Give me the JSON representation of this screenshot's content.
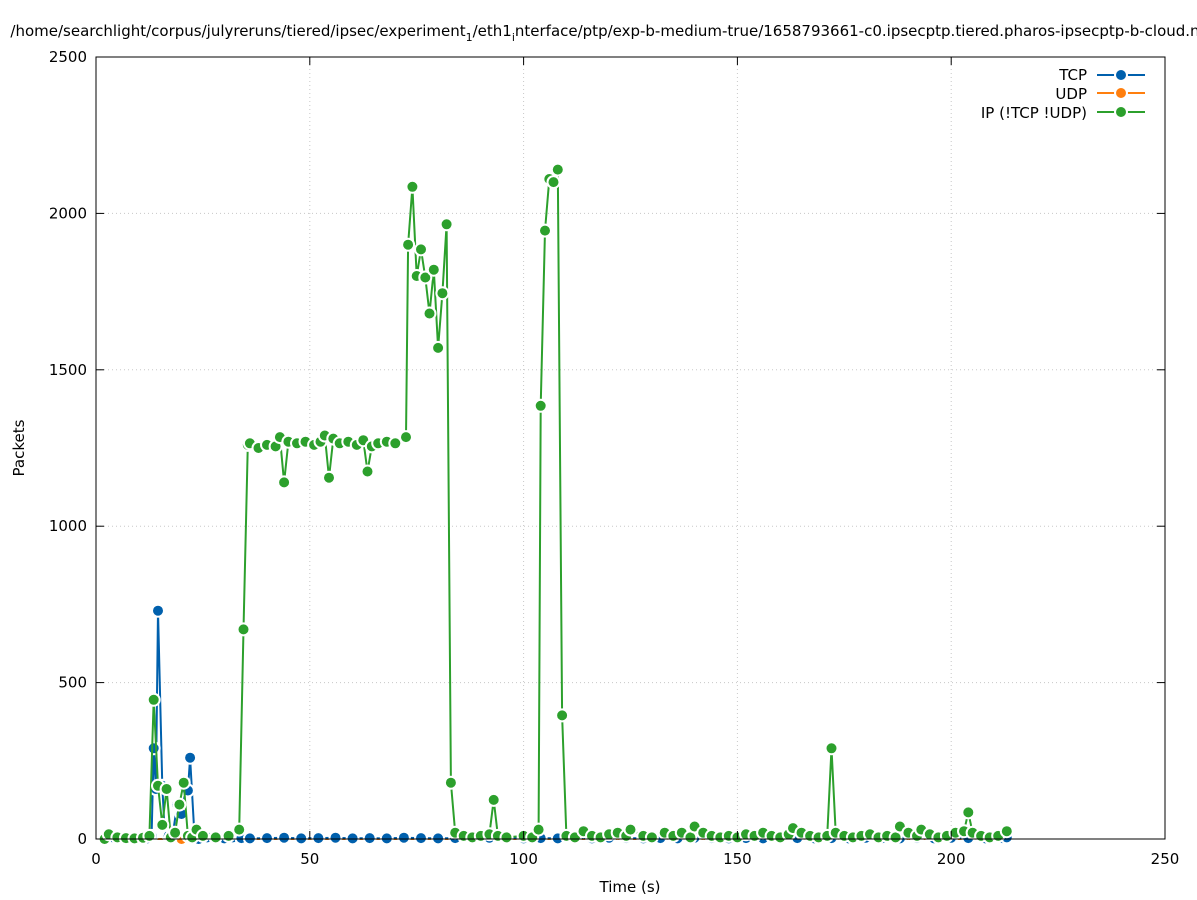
{
  "chart_data": {
    "type": "line",
    "title": "/home/searchlight/corpus/julyreruns/tiered/ipsec/experiment_1/eth1_interface/ptp/exp-b-medium-true/1658793661-c0.ipsecptp.tiered.pharos-ipsecptp-b-cloud.n",
    "title_main": "/home/searchlight/corpus/julyreruns/tiered/ipsec/experiment",
    "title_sub1": "1",
    "title_mid": "/eth1",
    "title_sub2": "i",
    "title_end": "nterface/ptp/exp-b-medium-true/1658793661-c0.ipsecptp.tiered.pharos-ipsecptp-b-cloud.n",
    "xlabel": "Time (s)",
    "ylabel": "Packets",
    "xlim": [
      0,
      250
    ],
    "ylim": [
      0,
      2500
    ],
    "xticks": [
      0,
      50,
      100,
      150,
      200,
      250
    ],
    "yticks": [
      0,
      500,
      1000,
      1500,
      2000,
      2500
    ],
    "grid": true,
    "legend_position": "top-right",
    "series": [
      {
        "name": "TCP",
        "color": "#0060ad",
        "points": [
          [
            2,
            0
          ],
          [
            4,
            5
          ],
          [
            6,
            3
          ],
          [
            8,
            2
          ],
          [
            10,
            4
          ],
          [
            12,
            2
          ],
          [
            13,
            10
          ],
          [
            13.5,
            290
          ],
          [
            14,
            160
          ],
          [
            14.5,
            730
          ],
          [
            15.5,
            170
          ],
          [
            16,
            40
          ],
          [
            17,
            10
          ],
          [
            18,
            20
          ],
          [
            19,
            110
          ],
          [
            20,
            80
          ],
          [
            21,
            160
          ],
          [
            21.5,
            155
          ],
          [
            22,
            260
          ],
          [
            23,
            20
          ],
          [
            24,
            0
          ],
          [
            26,
            5
          ],
          [
            28,
            3
          ],
          [
            30,
            2
          ],
          [
            32,
            5
          ],
          [
            34,
            3
          ],
          [
            36,
            2
          ],
          [
            40,
            3
          ],
          [
            44,
            4
          ],
          [
            48,
            2
          ],
          [
            52,
            3
          ],
          [
            56,
            4
          ],
          [
            60,
            2
          ],
          [
            64,
            3
          ],
          [
            68,
            2
          ],
          [
            72,
            4
          ],
          [
            76,
            3
          ],
          [
            80,
            2
          ],
          [
            84,
            3
          ],
          [
            88,
            2
          ],
          [
            92,
            4
          ],
          [
            96,
            3
          ],
          [
            100,
            2
          ],
          [
            104,
            3
          ],
          [
            108,
            2
          ],
          [
            112,
            3
          ],
          [
            116,
            2
          ],
          [
            120,
            4
          ],
          [
            124,
            3
          ],
          [
            128,
            2
          ],
          [
            132,
            3
          ],
          [
            136,
            2
          ],
          [
            140,
            4
          ],
          [
            144,
            3
          ],
          [
            148,
            2
          ],
          [
            152,
            3
          ],
          [
            156,
            2
          ],
          [
            160,
            4
          ],
          [
            164,
            3
          ],
          [
            168,
            2
          ],
          [
            172,
            3
          ],
          [
            176,
            2
          ],
          [
            180,
            4
          ],
          [
            184,
            3
          ],
          [
            188,
            2
          ],
          [
            192,
            3
          ],
          [
            196,
            2
          ],
          [
            200,
            4
          ],
          [
            204,
            3
          ],
          [
            208,
            2
          ],
          [
            212,
            3
          ],
          [
            213,
            5
          ]
        ]
      },
      {
        "name": "UDP",
        "color": "#ff7f0e",
        "points": [
          [
            2,
            0
          ],
          [
            20,
            0
          ],
          [
            40,
            0
          ],
          [
            60,
            0
          ],
          [
            80,
            0
          ],
          [
            100,
            0
          ],
          [
            120,
            0
          ],
          [
            140,
            0
          ],
          [
            160,
            0
          ],
          [
            180,
            0
          ],
          [
            200,
            0
          ],
          [
            213,
            -5
          ]
        ]
      },
      {
        "name": "IP (!TCP  !UDP)",
        "color": "#2ca02c",
        "points": [
          [
            2,
            0
          ],
          [
            3,
            15
          ],
          [
            5,
            5
          ],
          [
            7,
            3
          ],
          [
            9,
            2
          ],
          [
            11,
            4
          ],
          [
            12.5,
            10
          ],
          [
            13.5,
            445
          ],
          [
            14.5,
            170
          ],
          [
            15.5,
            45
          ],
          [
            16.5,
            160
          ],
          [
            17.5,
            5
          ],
          [
            18.5,
            20
          ],
          [
            19.5,
            110
          ],
          [
            20.5,
            180
          ],
          [
            21.5,
            10
          ],
          [
            22.5,
            5
          ],
          [
            23.5,
            30
          ],
          [
            25,
            10
          ],
          [
            28,
            5
          ],
          [
            31,
            10
          ],
          [
            33.5,
            30
          ],
          [
            34.5,
            670
          ],
          [
            35.5,
            1260
          ],
          [
            36,
            1265
          ],
          [
            38,
            1250
          ],
          [
            40,
            1260
          ],
          [
            42,
            1255
          ],
          [
            43,
            1285
          ],
          [
            44,
            1140
          ],
          [
            45,
            1270
          ],
          [
            47,
            1265
          ],
          [
            49,
            1270
          ],
          [
            51,
            1260
          ],
          [
            52.5,
            1270
          ],
          [
            53.5,
            1290
          ],
          [
            54.5,
            1155
          ],
          [
            55.5,
            1280
          ],
          [
            57,
            1265
          ],
          [
            59,
            1270
          ],
          [
            61,
            1260
          ],
          [
            62.5,
            1275
          ],
          [
            63.5,
            1175
          ],
          [
            64.5,
            1255
          ],
          [
            66,
            1265
          ],
          [
            68,
            1270
          ],
          [
            70,
            1265
          ],
          [
            72.5,
            1285
          ],
          [
            73,
            1900
          ],
          [
            74,
            2085
          ],
          [
            75,
            1800
          ],
          [
            76,
            1885
          ],
          [
            77,
            1795
          ],
          [
            78,
            1680
          ],
          [
            79,
            1820
          ],
          [
            80,
            1570
          ],
          [
            81,
            1745
          ],
          [
            82,
            1965
          ],
          [
            83,
            180
          ],
          [
            84,
            20
          ],
          [
            86,
            10
          ],
          [
            88,
            5
          ],
          [
            90,
            10
          ],
          [
            92,
            15
          ],
          [
            93,
            125
          ],
          [
            94,
            10
          ],
          [
            96,
            5
          ],
          [
            100,
            10
          ],
          [
            102,
            5
          ],
          [
            103.5,
            30
          ],
          [
            104,
            1385
          ],
          [
            105,
            1945
          ],
          [
            106,
            2110
          ],
          [
            107,
            2100
          ],
          [
            108,
            2140
          ],
          [
            109,
            395
          ],
          [
            110,
            10
          ],
          [
            112,
            5
          ],
          [
            114,
            25
          ],
          [
            116,
            10
          ],
          [
            118,
            5
          ],
          [
            120,
            15
          ],
          [
            122,
            20
          ],
          [
            124,
            10
          ],
          [
            125,
            30
          ],
          [
            128,
            10
          ],
          [
            130,
            5
          ],
          [
            133,
            20
          ],
          [
            135,
            10
          ],
          [
            137,
            20
          ],
          [
            139,
            5
          ],
          [
            140,
            40
          ],
          [
            142,
            20
          ],
          [
            144,
            10
          ],
          [
            146,
            5
          ],
          [
            148,
            10
          ],
          [
            150,
            5
          ],
          [
            152,
            15
          ],
          [
            154,
            10
          ],
          [
            156,
            20
          ],
          [
            158,
            10
          ],
          [
            160,
            5
          ],
          [
            162,
            15
          ],
          [
            163,
            35
          ],
          [
            165,
            20
          ],
          [
            167,
            10
          ],
          [
            169,
            5
          ],
          [
            171,
            10
          ],
          [
            172,
            290
          ],
          [
            173,
            20
          ],
          [
            175,
            10
          ],
          [
            177,
            5
          ],
          [
            179,
            10
          ],
          [
            181,
            15
          ],
          [
            183,
            5
          ],
          [
            185,
            10
          ],
          [
            187,
            5
          ],
          [
            188,
            40
          ],
          [
            190,
            20
          ],
          [
            192,
            10
          ],
          [
            193,
            30
          ],
          [
            195,
            15
          ],
          [
            197,
            5
          ],
          [
            199,
            10
          ],
          [
            201,
            20
          ],
          [
            203,
            25
          ],
          [
            204,
            85
          ],
          [
            205,
            20
          ],
          [
            207,
            10
          ],
          [
            209,
            5
          ],
          [
            211,
            10
          ],
          [
            213,
            25
          ]
        ]
      }
    ]
  }
}
